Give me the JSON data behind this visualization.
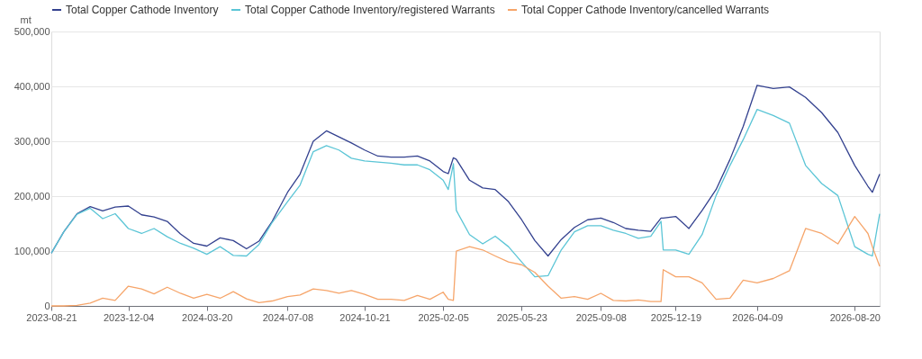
{
  "chart_data": {
    "type": "line",
    "ylabel": "mt",
    "x": [
      "2023-08-21",
      "2023-09-07",
      "2023-09-25",
      "2023-10-13",
      "2023-10-30",
      "2023-11-16",
      "2023-12-04",
      "2023-12-22",
      "2024-01-08",
      "2024-01-26",
      "2024-02-13",
      "2024-03-02",
      "2024-03-20",
      "2024-04-07",
      "2024-04-25",
      "2024-05-13",
      "2024-05-30",
      "2024-06-17",
      "2024-07-08",
      "2024-07-25",
      "2024-08-12",
      "2024-08-30",
      "2024-09-16",
      "2024-10-03",
      "2024-10-21",
      "2024-11-08",
      "2024-11-26",
      "2024-12-14",
      "2025-01-01",
      "2025-01-18",
      "2025-02-05",
      "2025-02-12",
      "2025-02-19",
      "2025-02-23",
      "2025-03-13",
      "2025-03-31",
      "2025-04-17",
      "2025-05-05",
      "2025-05-23",
      "2025-06-10",
      "2025-06-28",
      "2025-07-16",
      "2025-08-03",
      "2025-08-21",
      "2025-09-08",
      "2025-09-25",
      "2025-10-12",
      "2025-10-29",
      "2025-11-15",
      "2025-11-29",
      "2025-12-02",
      "2025-12-19",
      "2026-01-06",
      "2026-01-24",
      "2026-02-12",
      "2026-03-03",
      "2026-03-21",
      "2026-04-09",
      "2026-05-01",
      "2026-05-23",
      "2026-06-14",
      "2026-07-06",
      "2026-07-28",
      "2026-08-20",
      "2026-09-07",
      "2026-09-13",
      "2026-09-23"
    ],
    "series": [
      {
        "name": "Total Copper Cathode Inventory",
        "color": "#33418f",
        "values": [
          96000,
          135000,
          168000,
          181000,
          173000,
          180000,
          182000,
          166000,
          162000,
          154000,
          131000,
          114000,
          109000,
          124000,
          119000,
          104000,
          118000,
          154000,
          207000,
          240000,
          300000,
          319000,
          308000,
          297000,
          284000,
          273000,
          271000,
          271000,
          273000,
          264000,
          245000,
          241000,
          270000,
          267000,
          229000,
          215000,
          212000,
          190000,
          157000,
          119000,
          91000,
          121000,
          143000,
          157000,
          160000,
          152000,
          141000,
          138000,
          136000,
          160000,
          160000,
          163000,
          141000,
          174000,
          212000,
          267000,
          327000,
          402000,
          396000,
          399000,
          380000,
          352000,
          316000,
          256000,
          218000,
          207000,
          240000
        ]
      },
      {
        "name": "Total Copper Cathode Inventory/registered Warrants",
        "color": "#5bc5d6",
        "values": [
          96000,
          135000,
          167000,
          178000,
          159000,
          168000,
          141000,
          132000,
          141000,
          126000,
          114000,
          105000,
          94000,
          108000,
          92000,
          91000,
          112000,
          152000,
          190000,
          220000,
          281000,
          292000,
          284000,
          269000,
          264000,
          262000,
          260000,
          257000,
          257000,
          248000,
          229000,
          212000,
          259000,
          174000,
          130000,
          113000,
          127000,
          108000,
          80000,
          53000,
          55000,
          102000,
          135000,
          146000,
          146000,
          138000,
          132000,
          123000,
          127000,
          154000,
          102000,
          102000,
          94000,
          130000,
          201000,
          256000,
          303000,
          358000,
          347000,
          333000,
          256000,
          223000,
          201000,
          108000,
          94000,
          91000,
          168000
        ]
      },
      {
        "name": "Total Copper Cathode Inventory/cancelled Warrants",
        "color": "#f6a56a",
        "values": [
          0,
          0,
          1000,
          5000,
          14000,
          10000,
          36000,
          31000,
          22000,
          34000,
          23000,
          14000,
          21000,
          14000,
          26000,
          13000,
          6000,
          9000,
          17000,
          20000,
          31000,
          28000,
          23000,
          28000,
          21000,
          12000,
          12000,
          10000,
          19000,
          12000,
          25000,
          12000,
          10000,
          100000,
          108000,
          102000,
          91000,
          80000,
          75000,
          61000,
          36000,
          14000,
          17000,
          12000,
          23000,
          10000,
          9000,
          11000,
          8000,
          8000,
          66000,
          53000,
          53000,
          42000,
          12000,
          14000,
          47000,
          42000,
          50000,
          64000,
          141000,
          132000,
          113000,
          163000,
          132000,
          108000,
          72000
        ]
      }
    ],
    "ylim": [
      0,
      500000
    ],
    "yticks": [
      {
        "value": 0,
        "label": "0"
      },
      {
        "value": 100000,
        "label": "100,000"
      },
      {
        "value": 200000,
        "label": "200,000"
      },
      {
        "value": 300000,
        "label": "300,000"
      },
      {
        "value": 400000,
        "label": "400,000"
      },
      {
        "value": 500000,
        "label": "500,000"
      }
    ],
    "xlim": [
      "2023-08-21",
      "2026-09-23"
    ],
    "xticks": [
      "2023-08-21",
      "2023-12-04",
      "2024-03-20",
      "2024-07-08",
      "2024-10-21",
      "2025-02-05",
      "2025-05-23",
      "2025-09-08",
      "2025-12-19",
      "2026-04-09",
      "2026-08-20"
    ],
    "grid": "y",
    "legend": "top",
    "marker": "none",
    "line_style": "solid"
  }
}
